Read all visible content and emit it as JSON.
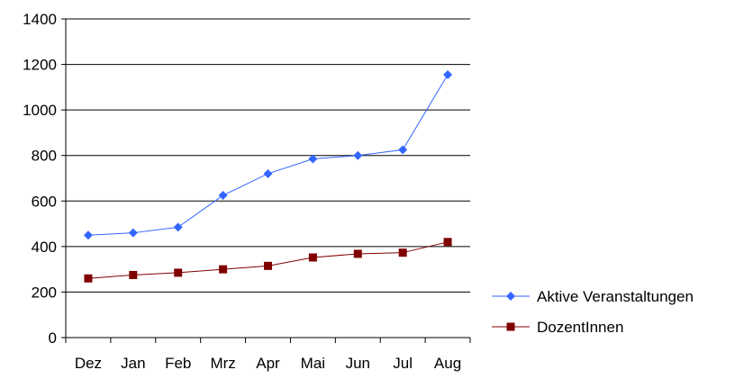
{
  "chart_data": {
    "type": "line",
    "title": "",
    "xlabel": "",
    "ylabel": "",
    "categories": [
      "Dez",
      "Jan",
      "Feb",
      "Mrz",
      "Apr",
      "Mai",
      "Jun",
      "Jul",
      "Aug"
    ],
    "ylim": [
      0,
      1400
    ],
    "yticks": [
      0,
      200,
      400,
      600,
      800,
      1000,
      1200,
      1400
    ],
    "grid": true,
    "legend_position": "bottom-right",
    "series": [
      {
        "name": "Aktive Veranstaltungen",
        "color": "#3366FF",
        "marker": "diamond",
        "values": [
          450,
          460,
          485,
          625,
          720,
          785,
          800,
          825,
          1155
        ]
      },
      {
        "name": "DozentInnen",
        "color": "#800000",
        "marker": "square",
        "values": [
          260,
          275,
          285,
          300,
          315,
          352,
          368,
          373,
          420
        ]
      }
    ]
  }
}
